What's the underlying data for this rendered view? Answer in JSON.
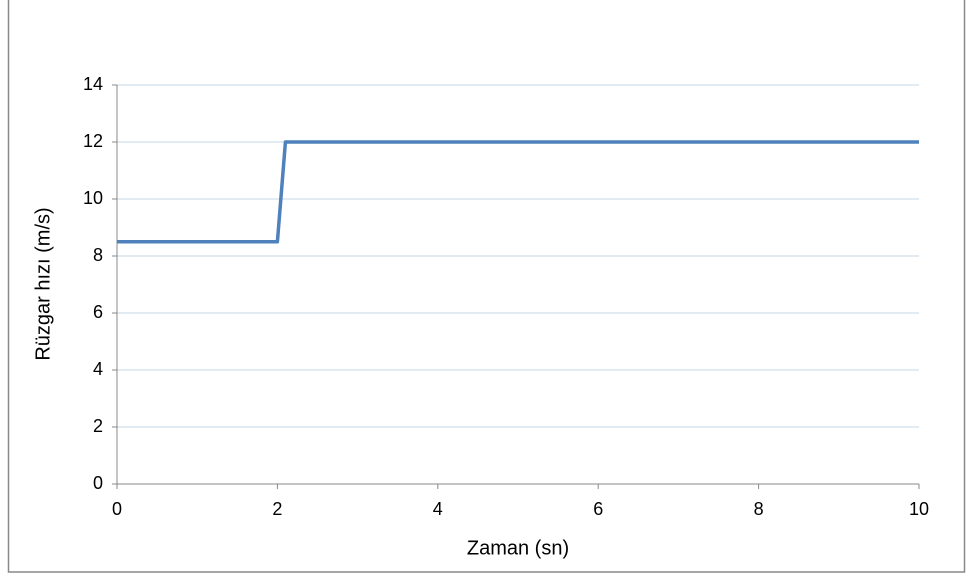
{
  "chart_data": {
    "type": "line",
    "xlabel": "Zaman (sn)",
    "ylabel": "Rüzgar hızı (m/s)",
    "x": [
      0,
      2,
      2.1,
      10
    ],
    "series": [
      {
        "name": "Rüzgar hızı",
        "color": "#4f81bd",
        "values": [
          8.5,
          8.5,
          12,
          12
        ]
      }
    ],
    "xlim": [
      0,
      10
    ],
    "xticks": [
      0,
      2,
      4,
      6,
      8,
      10
    ],
    "ylim": [
      0,
      14
    ],
    "yticks": [
      0,
      2,
      4,
      6,
      8,
      10,
      12,
      14
    ],
    "grid": true
  }
}
